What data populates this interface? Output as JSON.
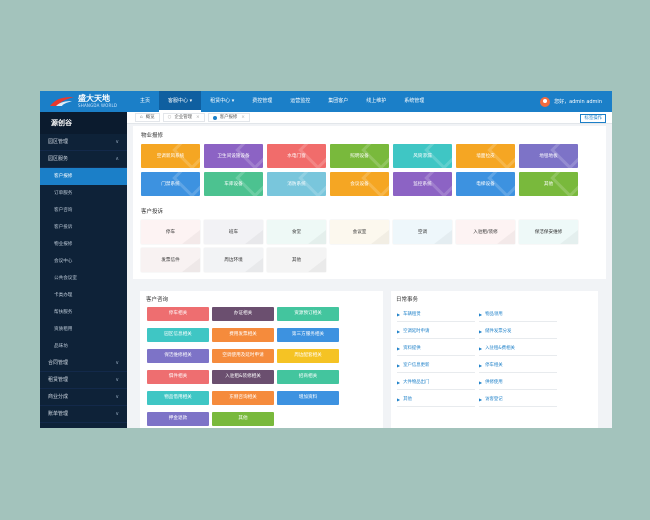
{
  "app": {
    "brand": "盛大天地",
    "brand_sub": "SHANGDA WORLD",
    "user_text": "您好，admin admin"
  },
  "nav": [
    "主页",
    "客服中心 ▾",
    "租赁中心 ▾",
    "费控管理",
    "运营监控",
    "集团客户",
    "线上维护",
    "系统管理"
  ],
  "sidebar": {
    "title": "源创谷",
    "items": [
      {
        "label": "园区管理",
        "type": "section",
        "arrow": "∨"
      },
      {
        "label": "园区服务",
        "type": "section",
        "arrow": "∧"
      },
      {
        "label": "客户报修",
        "type": "sub",
        "active": true
      },
      {
        "label": "订单服务",
        "type": "sub"
      },
      {
        "label": "客户咨询",
        "type": "sub"
      },
      {
        "label": "客户投诉",
        "type": "sub"
      },
      {
        "label": "物业报修",
        "type": "sub"
      },
      {
        "label": "会议中心",
        "type": "sub"
      },
      {
        "label": "公共会议室",
        "type": "sub"
      },
      {
        "label": "卡类办理",
        "type": "sub"
      },
      {
        "label": "帮扶服务",
        "type": "sub"
      },
      {
        "label": "资质租用",
        "type": "sub"
      },
      {
        "label": "品味坊",
        "type": "sub"
      },
      {
        "label": "合同管理",
        "type": "section",
        "arrow": "∨"
      },
      {
        "label": "租赁管理",
        "type": "section",
        "arrow": "∨"
      },
      {
        "label": "商业分成",
        "type": "section",
        "arrow": "∨"
      },
      {
        "label": "账单管理",
        "type": "section",
        "arrow": "∨"
      }
    ]
  },
  "tabs": {
    "home": "概览",
    "t1": "企业管理",
    "t2": "客户报修",
    "op": "标签操作"
  },
  "wuye": {
    "title": "物业报修",
    "tiles": [
      {
        "label": "空调新风系统",
        "color": "#f5a623"
      },
      {
        "label": "卫生间设施设备",
        "color": "#8c63c4"
      },
      {
        "label": "水电门窗",
        "color": "#f16c6b"
      },
      {
        "label": "照明设备",
        "color": "#79b93c"
      },
      {
        "label": "风筒渗漏",
        "color": "#3fc6c4"
      },
      {
        "label": "墙面拉皮",
        "color": "#f5a623"
      },
      {
        "label": "地毯地板",
        "color": "#7d73c7"
      },
      {
        "label": "门禁系统",
        "color": "#3d92e0"
      },
      {
        "label": "车库设备",
        "color": "#4cc290"
      },
      {
        "label": "消防系统",
        "color": "#79c6dc"
      },
      {
        "label": "会议设备",
        "color": "#f5a623"
      },
      {
        "label": "监控系统",
        "color": "#8c63c4"
      },
      {
        "label": "电梯设备",
        "color": "#3d92e0"
      },
      {
        "label": "其他",
        "color": "#79b93c"
      }
    ]
  },
  "complaint": {
    "title": "客户投诉",
    "tiles": [
      "停车",
      "班车",
      "食堂",
      "会议室",
      "空调",
      "入驻租/装修",
      "保洁保安维修",
      "发票信件",
      "周边环境",
      "其他"
    ]
  },
  "consult": {
    "title": "客户咨询",
    "buttons": [
      {
        "label": "停车相关",
        "color": "#ee6e70"
      },
      {
        "label": "办证相关",
        "color": "#6b4f6f"
      },
      {
        "label": "资源预订相关",
        "color": "#43c59e"
      },
      {
        "label": "园区信息相关",
        "color": "#3fc6c4"
      },
      {
        "label": "费用发票相关",
        "color": "#f58b3c"
      },
      {
        "label": "第三方服务相关",
        "color": "#3d92e0"
      },
      {
        "label": "保洁维修相关",
        "color": "#7d73c7"
      },
      {
        "label": "空调使用及延时申请",
        "color": "#f58b3c"
      },
      {
        "label": "周边配套相关",
        "color": "#f5c324"
      },
      {
        "label": "俱件相关",
        "color": "#ee6e70"
      },
      {
        "label": "入驻租&装修相关",
        "color": "#6b4f6f"
      },
      {
        "label": "招商相关",
        "color": "#43c59e"
      },
      {
        "label": "物品借用相关",
        "color": "#3fc6c4"
      },
      {
        "label": "东侧咨询相关",
        "color": "#f58b3c"
      },
      {
        "label": "增加资料",
        "color": "#3d92e0"
      },
      {
        "label": "押金退款",
        "color": "#7d73c7"
      },
      {
        "label": "其他",
        "color": "#79b93c"
      }
    ]
  },
  "affairs": {
    "title": "日常事务",
    "left": [
      "车辆租赁",
      "空调延时申请",
      "资料提供",
      "室户信息更新",
      "大件物品出门",
      "其他"
    ],
    "right": [
      "物品领用",
      "储件发票分发",
      "入驻租&费相关",
      "停车相关",
      "供修使用",
      "访客登记"
    ]
  }
}
